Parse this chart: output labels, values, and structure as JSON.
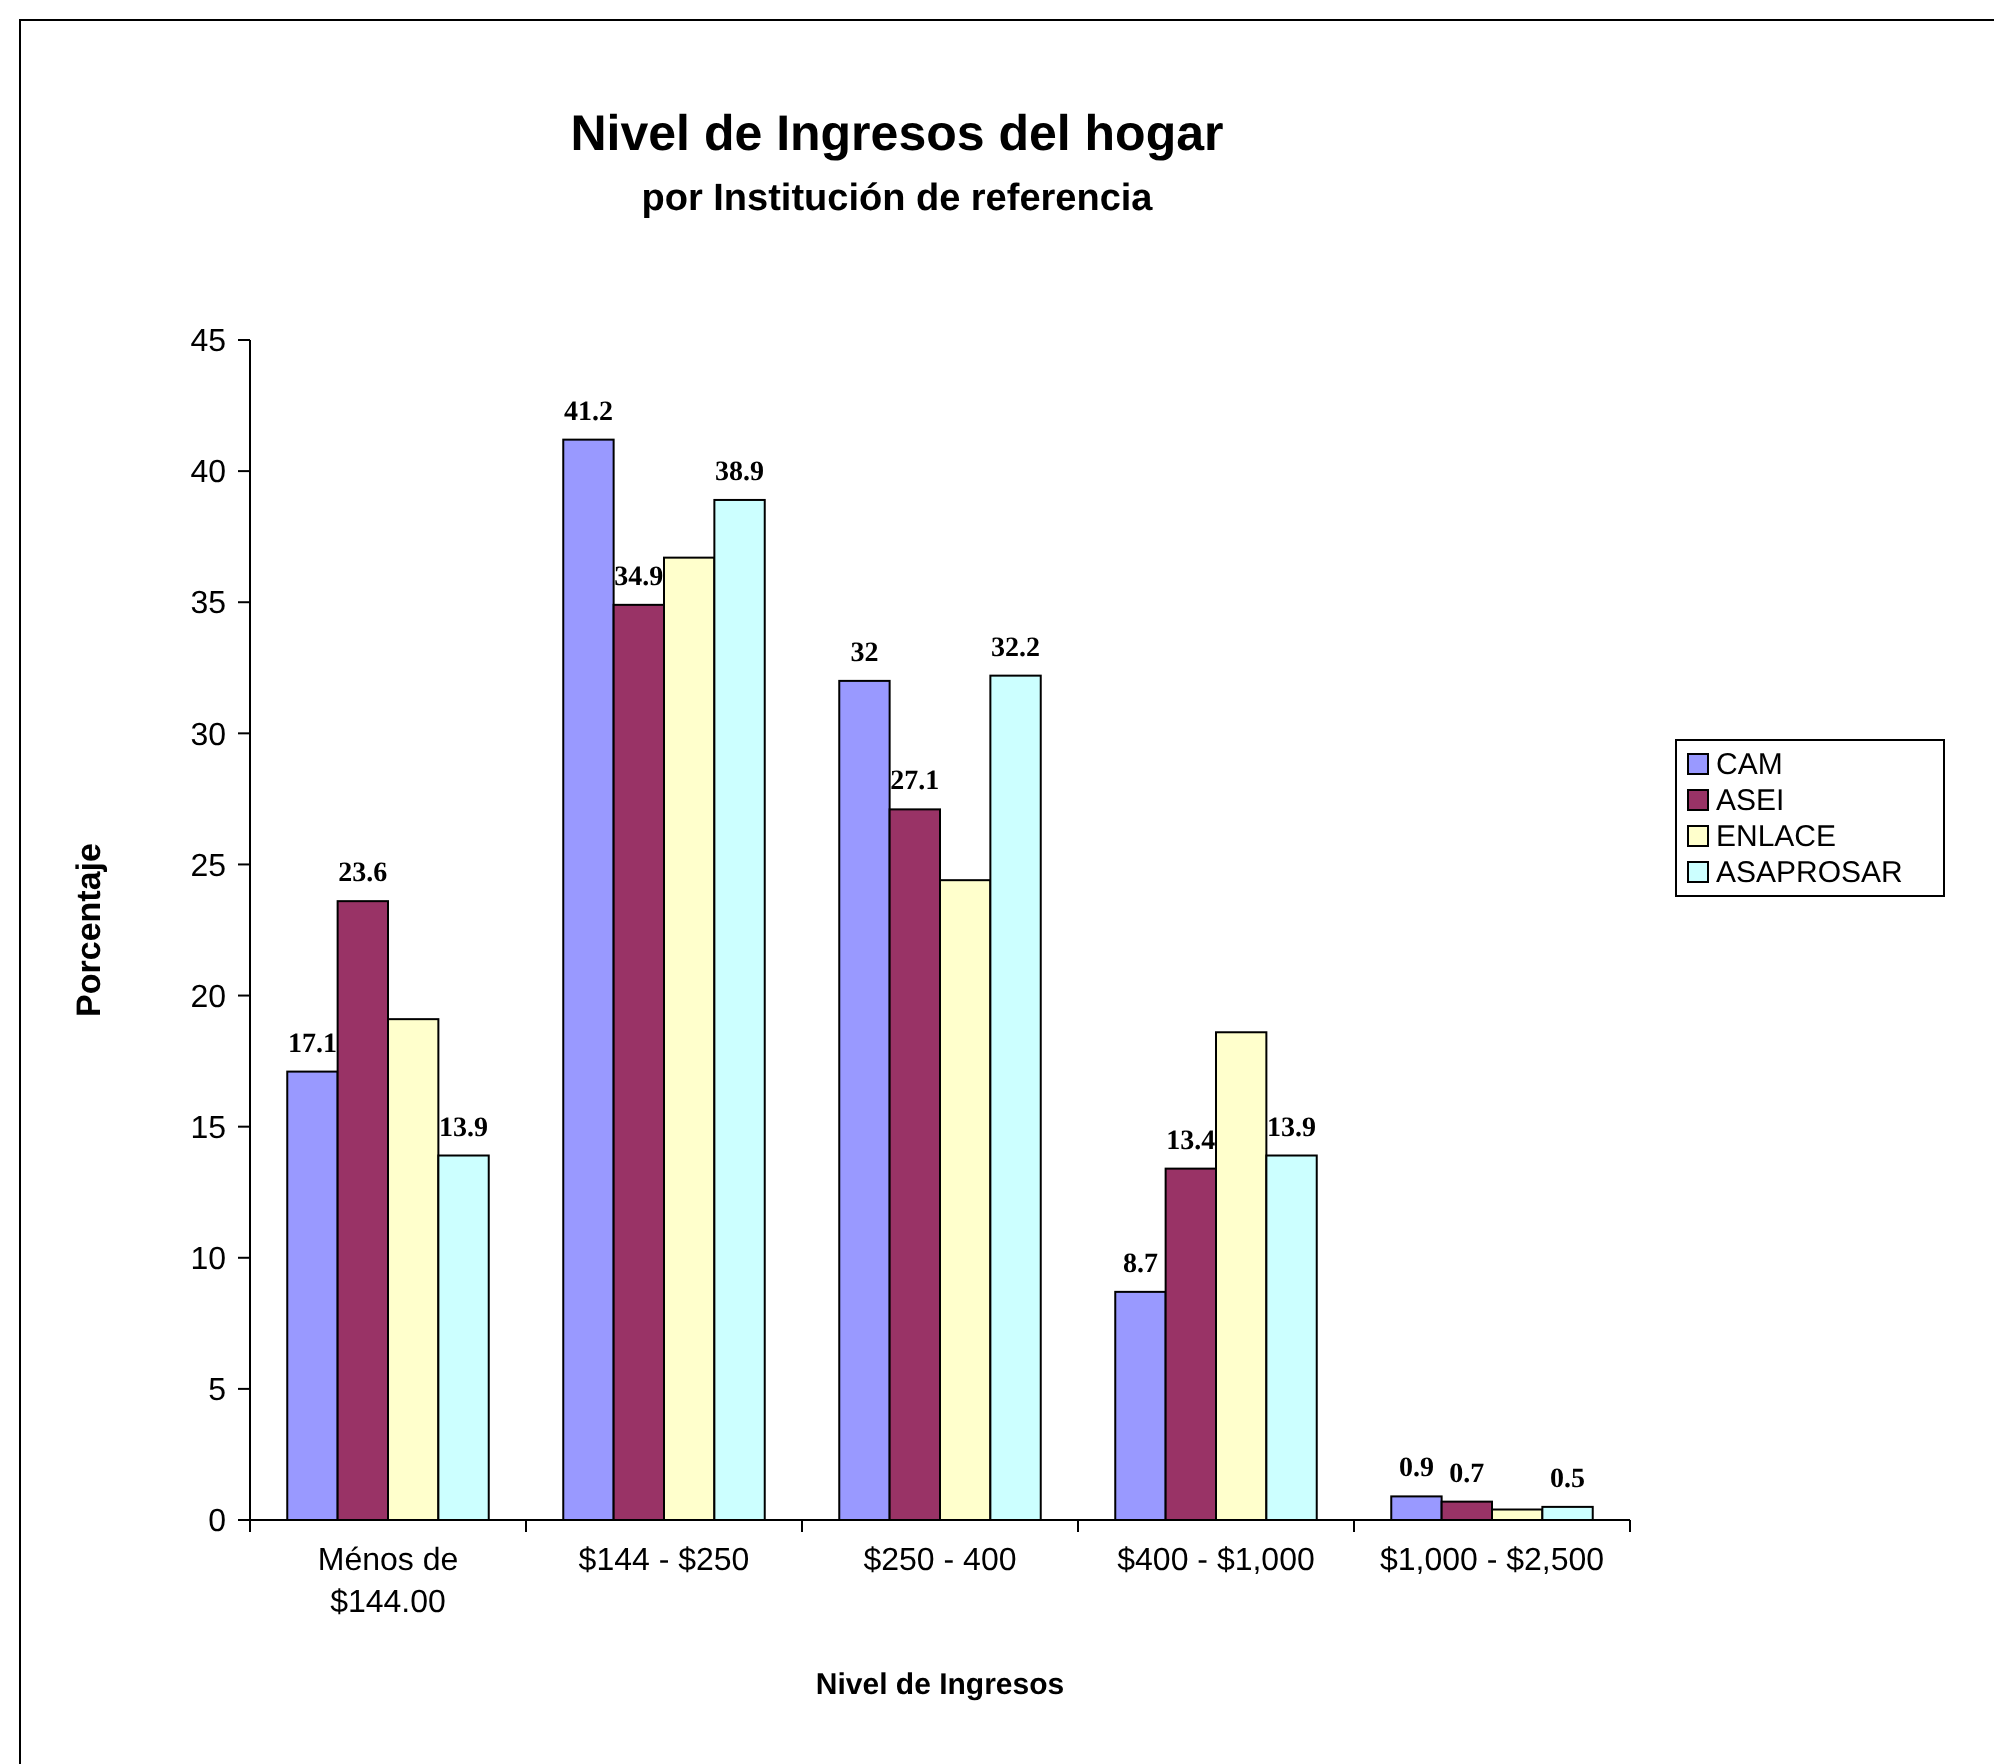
{
  "chart_data": {
    "type": "bar",
    "title": "Nivel de Ingresos del hogar",
    "subtitle": "por Institución de referencia",
    "xlabel": "Nivel de Ingresos",
    "ylabel": "Porcentaje",
    "categories": [
      "Ménos de $144.00",
      "$144 - $250",
      "$250 - 400",
      "$400 - $1,000",
      "$1,000 - $2,500"
    ],
    "series": [
      {
        "name": "CAM",
        "color": "#9999ff",
        "values": [
          17.1,
          41.2,
          32,
          8.7,
          0.9
        ],
        "value_labels": [
          "17.1",
          "41.2",
          "32",
          "8.7",
          "0.9"
        ]
      },
      {
        "name": "ASEI",
        "color": "#993366",
        "values": [
          23.6,
          34.9,
          27.1,
          13.4,
          0.7
        ],
        "value_labels": [
          "23.6",
          "34.9",
          "27.1",
          "13.4",
          "0.7"
        ]
      },
      {
        "name": "ENLACE",
        "color": "#ffffcc",
        "values": [
          19.1,
          36.7,
          24.4,
          18.6,
          0.4
        ],
        "value_labels": [
          null,
          null,
          null,
          null,
          null
        ]
      },
      {
        "name": "ASAPROSAR",
        "color": "#ccffff",
        "values": [
          13.9,
          38.9,
          32.2,
          13.9,
          0.5
        ],
        "value_labels": [
          "13.9",
          "38.9",
          "32.2",
          "13.9",
          "0.5"
        ]
      }
    ],
    "ylim": [
      0,
      45
    ],
    "yticks": [
      0,
      5,
      10,
      15,
      20,
      25,
      30,
      35,
      40,
      45
    ],
    "grid": false,
    "legend": "right"
  }
}
